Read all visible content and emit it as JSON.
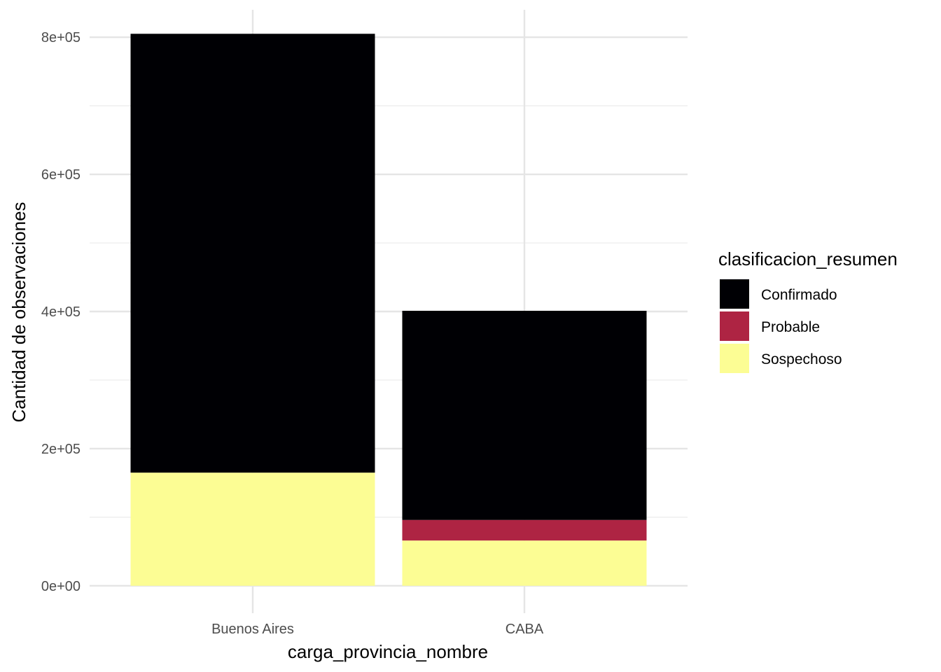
{
  "chart_data": {
    "type": "bar",
    "stacked": true,
    "categories": [
      "Buenos Aires",
      "CABA"
    ],
    "series": [
      {
        "name": "Sospechoso",
        "color": "#FCFD94",
        "values": [
          165000,
          66000
        ]
      },
      {
        "name": "Probable",
        "color": "#AE2443",
        "values": [
          0,
          30000
        ]
      },
      {
        "name": "Confirmado",
        "color": "#000004",
        "values": [
          640000,
          305000
        ]
      }
    ],
    "legend_order": [
      "Confirmado",
      "Probable",
      "Sospechoso"
    ],
    "xlabel": "carga_provincia_nombre",
    "ylabel": "Cantidad de observaciones",
    "ylim": [
      -40000,
      840000
    ],
    "yticks": [
      0,
      200000,
      400000,
      600000,
      800000
    ],
    "ytick_labels": [
      "0e+00",
      "2e+05",
      "4e+05",
      "6e+05",
      "8e+05"
    ],
    "legend_title": "clasificacion_resumen",
    "legend_position": "right",
    "grid": true
  }
}
